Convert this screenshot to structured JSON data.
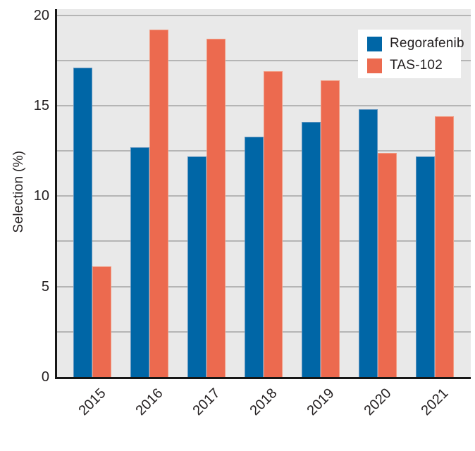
{
  "chart_data": {
    "type": "bar",
    "title": "",
    "categories": [
      "2015",
      "2016",
      "2017",
      "2018",
      "2019",
      "2020",
      "2021"
    ],
    "series": [
      {
        "name": "Regorafenib",
        "color": "#0066a6",
        "values": [
          17.1,
          12.7,
          12.2,
          13.3,
          14.1,
          14.8,
          12.2
        ]
      },
      {
        "name": "TAS-102",
        "color": "#ec6a4f",
        "values": [
          6.1,
          19.2,
          18.7,
          16.9,
          16.4,
          12.4,
          14.4
        ]
      }
    ],
    "xlabel": "",
    "ylabel": "Selection (%)",
    "ylim": [
      0,
      20.3
    ],
    "ytick_labels": [
      "0",
      "5",
      "10",
      "15",
      "20"
    ],
    "yticks_labeled": [
      0,
      5,
      10,
      15,
      20
    ],
    "gridline_interval": 2.5,
    "grid": true,
    "plot_background": "#e9e9e9",
    "gridline_color": "#b5b5b5",
    "axis_color": "#161616",
    "legend": {
      "position": "upper-right",
      "entries": [
        "Regorafenib",
        "TAS-102"
      ]
    }
  }
}
